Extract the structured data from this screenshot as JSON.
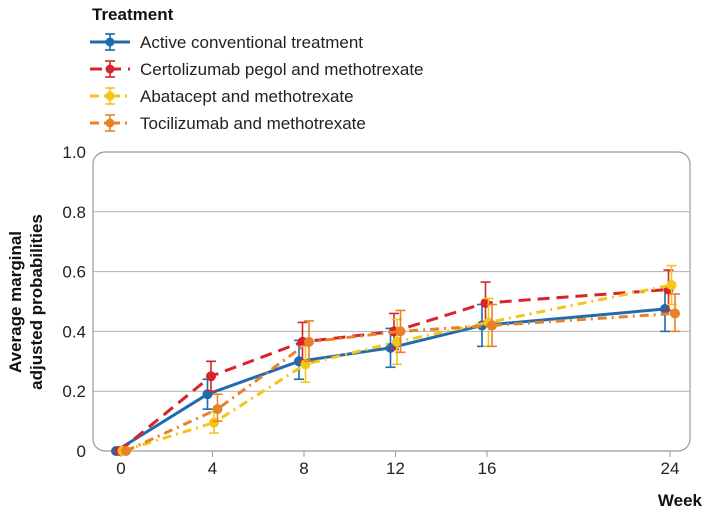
{
  "chart_data": {
    "type": "line",
    "legend_title": "Treatment",
    "xlabel": "Week",
    "ylabel_lines": [
      "Average marginal",
      "adjusted probabilities"
    ],
    "x": [
      0,
      4,
      8,
      12,
      16,
      24
    ],
    "x_tick_labels": [
      "0",
      "4",
      "8",
      "12",
      "16",
      "24"
    ],
    "ylim": [
      0,
      1.0
    ],
    "y_ticks": [
      0,
      0.2,
      0.4,
      0.6,
      0.8,
      1.0
    ],
    "y_tick_labels": [
      "0",
      "0.2",
      "0.4",
      "0.6",
      "0.8",
      "1.0"
    ],
    "grid": true,
    "legend_position": "top-left",
    "series": [
      {
        "name": "Active conventional treatment",
        "color": "#1f6bb0",
        "dash": "solid",
        "values": [
          0,
          0.19,
          0.3,
          0.345,
          0.42,
          0.475
        ],
        "lower": [
          0,
          0.14,
          0.24,
          0.28,
          0.35,
          0.4
        ],
        "upper": [
          0,
          0.24,
          0.37,
          0.41,
          0.49,
          0.55
        ]
      },
      {
        "name": "Certolizumab pegol and methotrexate",
        "color": "#d7242b",
        "dash": "long",
        "values": [
          0,
          0.25,
          0.365,
          0.4,
          0.495,
          0.54
        ],
        "lower": [
          0,
          0.2,
          0.3,
          0.34,
          0.43,
          0.47
        ],
        "upper": [
          0,
          0.3,
          0.43,
          0.46,
          0.565,
          0.605
        ]
      },
      {
        "name": "Abatacept and methotrexate",
        "color": "#f5c518",
        "dash": "dashdot",
        "values": [
          0,
          0.095,
          0.29,
          0.365,
          0.43,
          0.555
        ],
        "lower": [
          0,
          0.06,
          0.23,
          0.29,
          0.35,
          0.49
        ],
        "upper": [
          0,
          0.13,
          0.35,
          0.44,
          0.51,
          0.62
        ]
      },
      {
        "name": "Tocilizumab and methotrexate",
        "color": "#e8822a",
        "dash": "dashdot",
        "values": [
          0,
          0.14,
          0.365,
          0.4,
          0.42,
          0.46
        ],
        "lower": [
          0,
          0.1,
          0.3,
          0.33,
          0.35,
          0.4
        ],
        "upper": [
          0,
          0.19,
          0.435,
          0.47,
          0.49,
          0.525
        ]
      }
    ]
  }
}
